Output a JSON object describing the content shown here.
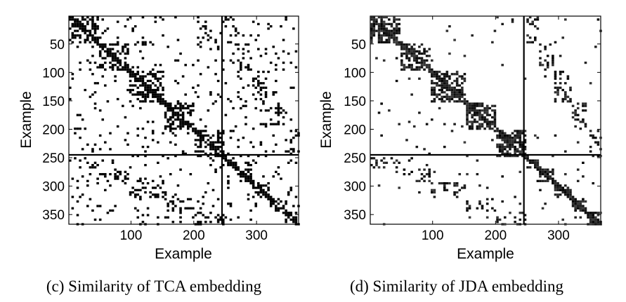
{
  "chart_data": [
    {
      "type": "heatmap",
      "caption": "(c) Similarity of TCA embedding",
      "xlabel": "Example",
      "ylabel": "Example",
      "xlim": [
        1,
        366
      ],
      "ylim": [
        1,
        366
      ],
      "x_ticks": [
        100,
        200,
        300
      ],
      "y_ticks": [
        50,
        100,
        150,
        200,
        250,
        300,
        350
      ],
      "domain_split": 245,
      "blocks": [
        [
          1,
          45
        ],
        [
          45,
          95
        ],
        [
          95,
          150
        ],
        [
          150,
          200
        ],
        [
          200,
          245
        ]
      ],
      "colormap": "gray-inverted",
      "grid": false
    },
    {
      "type": "heatmap",
      "caption": "(d) Similarity of JDA embedding",
      "xlabel": "Example",
      "ylabel": "Example",
      "xlim": [
        1,
        366
      ],
      "ylim": [
        1,
        366
      ],
      "x_ticks": [
        100,
        200,
        300
      ],
      "y_ticks": [
        50,
        100,
        150,
        200,
        250,
        300,
        350
      ],
      "domain_split": 245,
      "blocks": [
        [
          1,
          45
        ],
        [
          45,
          95
        ],
        [
          95,
          150
        ],
        [
          150,
          200
        ],
        [
          200,
          245
        ]
      ],
      "colormap": "gray-inverted",
      "grid": false
    }
  ]
}
